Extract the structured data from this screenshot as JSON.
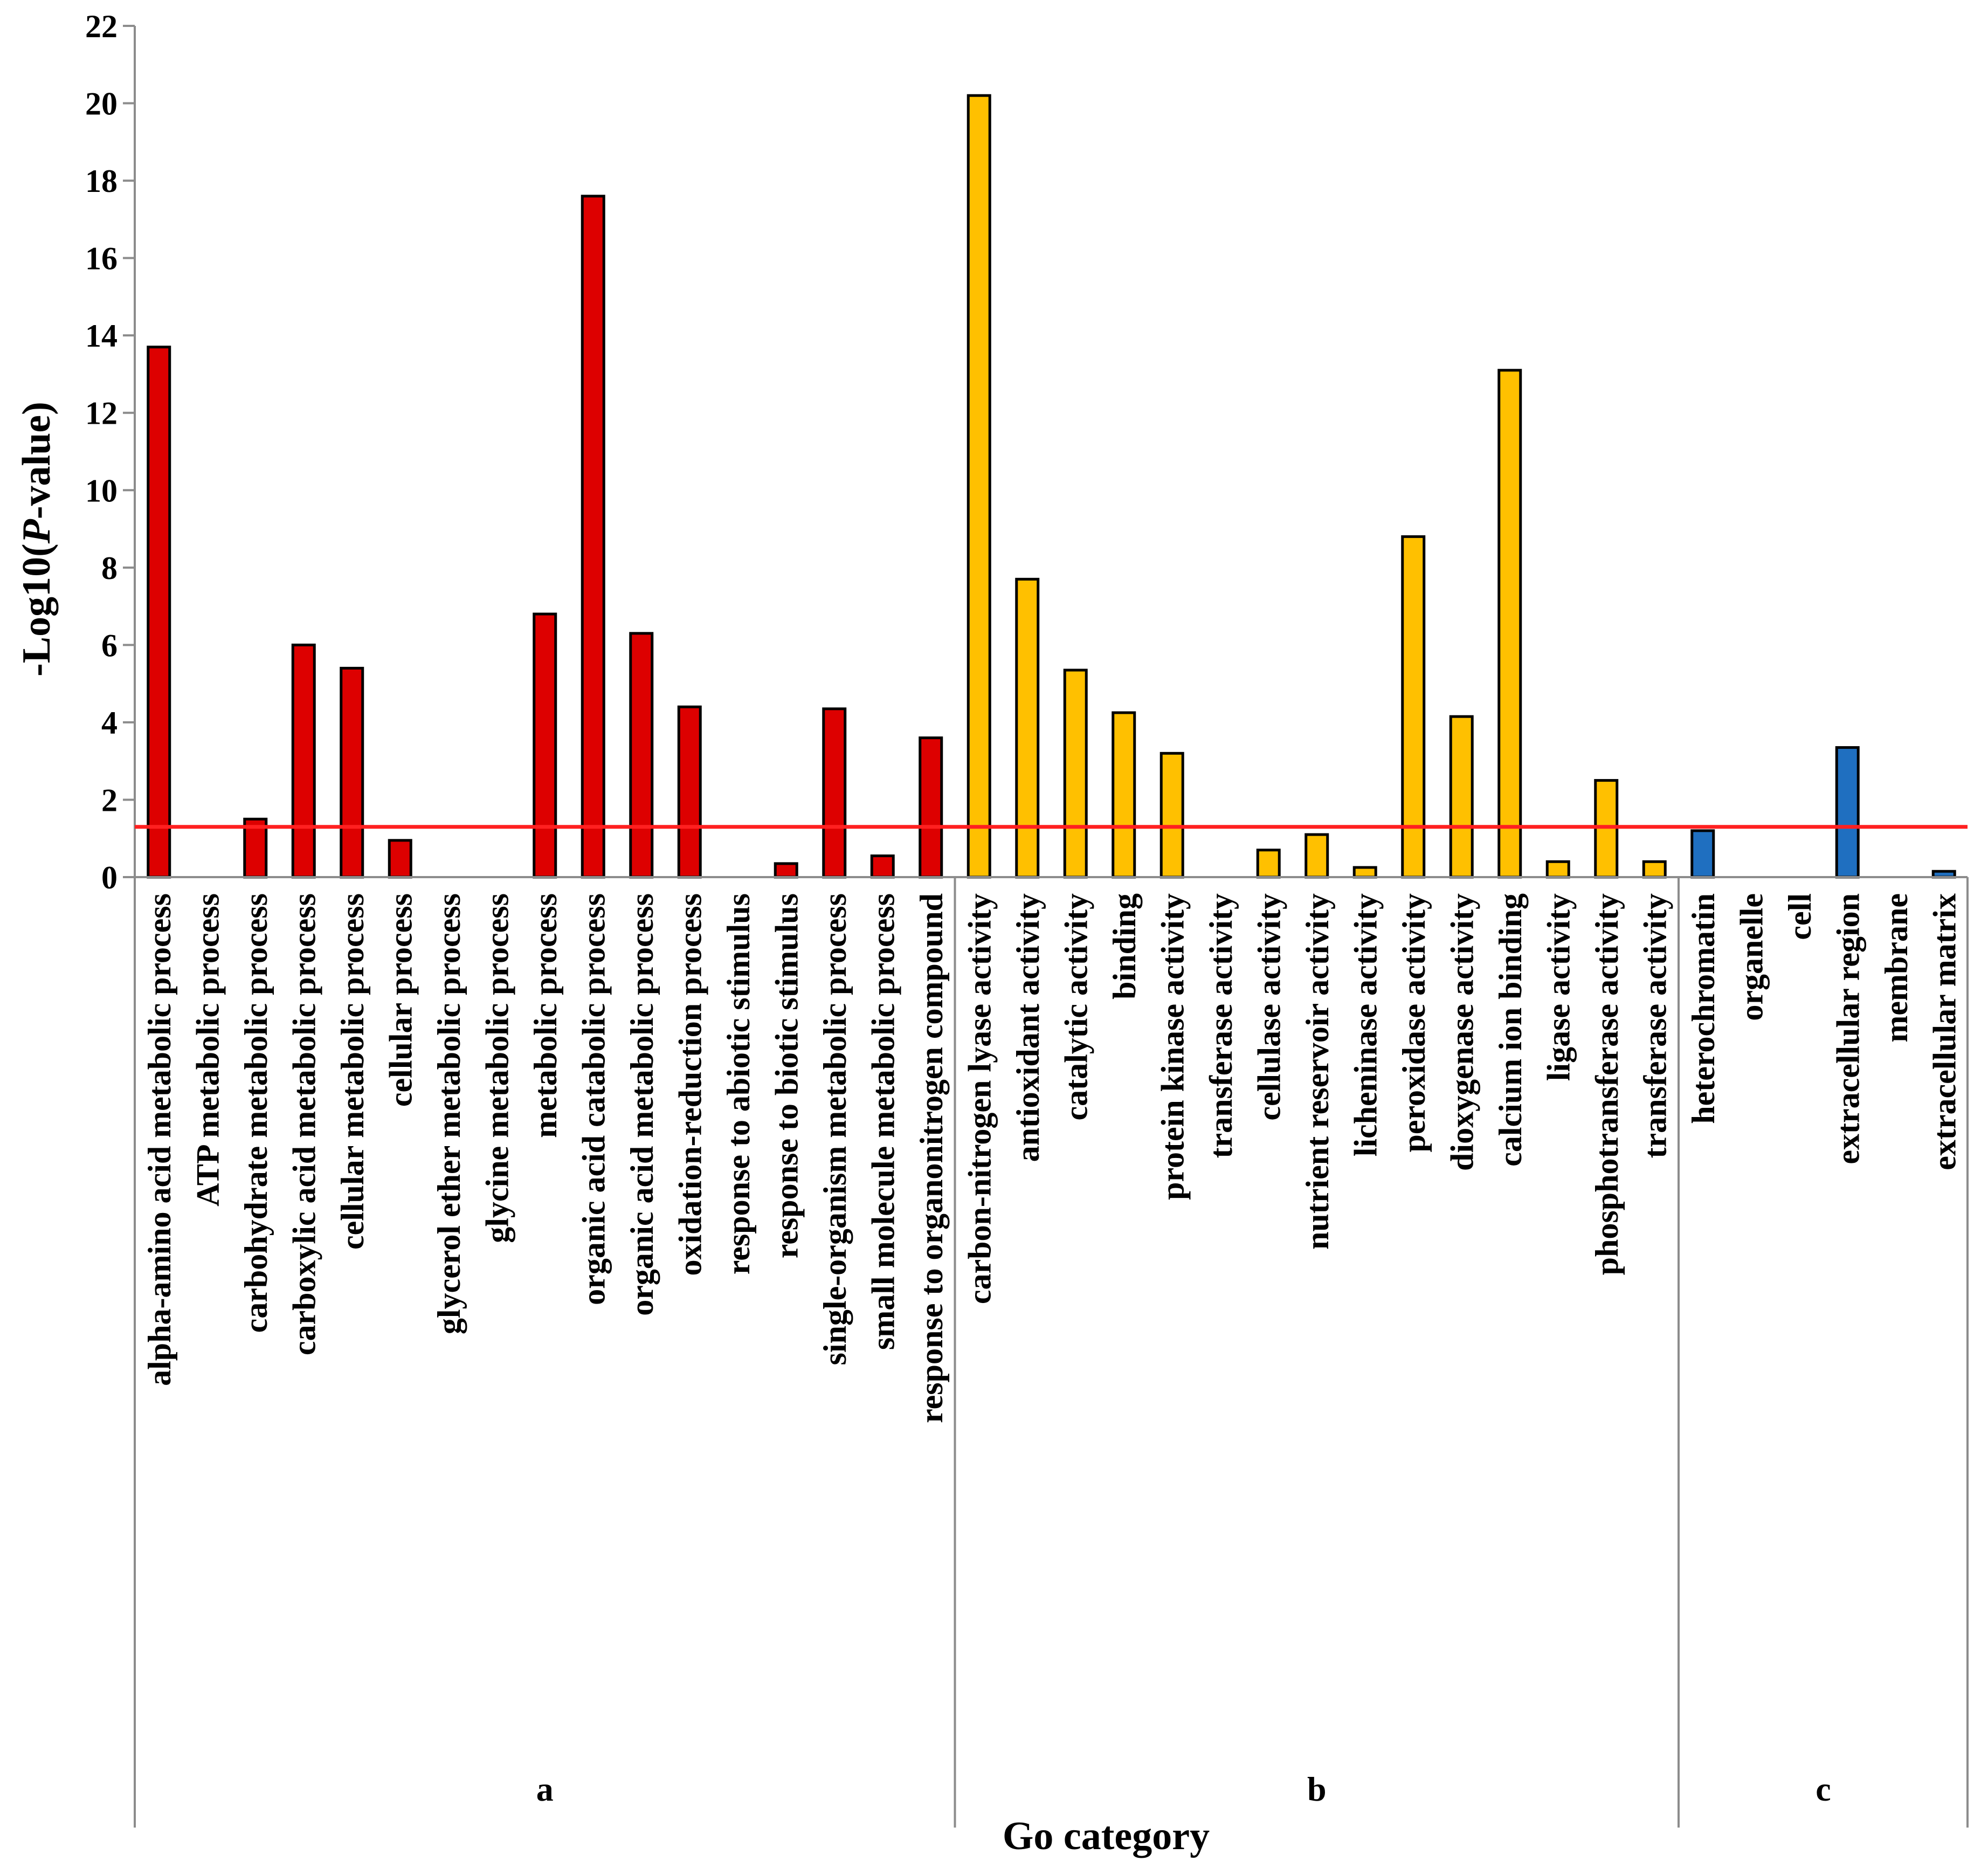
{
  "chart_data": {
    "type": "bar",
    "xlabel": "Go category",
    "ylabel": "-Log10(P-value)",
    "ylabel_parts": [
      "-Log10(",
      "P",
      "-value)"
    ],
    "ylim": [
      0,
      22
    ],
    "yticks": [
      0,
      2,
      4,
      6,
      8,
      10,
      12,
      14,
      16,
      18,
      20,
      22
    ],
    "threshold": 1.3,
    "threshold_color": "#ff2020",
    "groups": [
      {
        "name": "a",
        "color": "#dd0000",
        "categories": [
          "alpha-amino acid metabolic process",
          "ATP metabolic process",
          "carbohydrate metabolic process",
          "carboxylic acid metabolic process",
          "cellular metabolic process",
          "cellular process",
          "glycerol ether metabolic process",
          "glycine metabolic process",
          "metabolic process",
          "organic acid catabolic process",
          "organic acid metabolic process",
          "oxidation-reduction process",
          "response to abiotic stimulus",
          "response to biotic stimulus",
          "single-organism metabolic process",
          "small molecule metabolic process",
          "response to organonitrogen compound"
        ],
        "values": [
          13.7,
          0,
          1.5,
          6.0,
          5.4,
          0.95,
          0,
          0,
          6.8,
          17.6,
          6.3,
          4.4,
          0,
          0.35,
          4.35,
          0.55,
          3.6
        ]
      },
      {
        "name": "b",
        "color": "#ffc000",
        "categories": [
          "carbon-nitrogen lyase activity",
          "antioxidant activity",
          "catalytic activity",
          "binding",
          "protein kinase activity",
          "transferase activity",
          "cellulase activity",
          "nutrient reservoir activity",
          "licheninase activity",
          "peroxidase activity",
          "dioxygenase activity",
          "calcium ion binding",
          "ligase activity",
          "phosphotransferase activity",
          "transferase activity"
        ],
        "values": [
          20.2,
          7.7,
          5.35,
          4.25,
          3.2,
          0,
          0.7,
          1.1,
          0.25,
          8.8,
          4.15,
          13.1,
          0.4,
          2.5,
          0.4
        ]
      },
      {
        "name": "c",
        "color": "#1f6fc0",
        "categories": [
          "heterochromatin",
          "organelle",
          "cell",
          "extracellular region",
          "membrane",
          "extracellular matrix"
        ],
        "values": [
          1.2,
          0,
          0,
          3.35,
          0,
          0.15
        ]
      }
    ]
  }
}
